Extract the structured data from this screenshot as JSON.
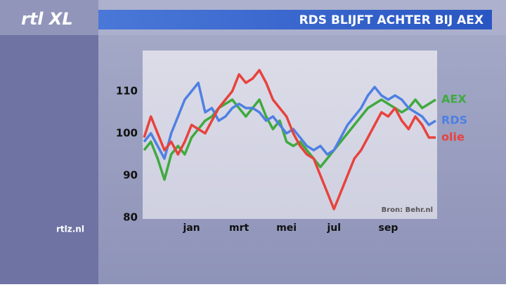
{
  "logo": "rtl XL",
  "website": "rtlz.nl",
  "chart_data": {
    "type": "line",
    "title": "RDS BLIJFT ACHTER BIJ AEX",
    "source": "Bron: Behr.nl",
    "categories": [
      null,
      null,
      null,
      null,
      null,
      null,
      null,
      "jan",
      null,
      null,
      null,
      null,
      null,
      null,
      "mrt",
      null,
      null,
      null,
      null,
      null,
      null,
      "mei",
      null,
      null,
      null,
      null,
      null,
      null,
      "jul",
      null,
      null,
      null,
      null,
      null,
      null,
      null,
      "sep",
      null,
      null,
      null,
      null,
      null,
      null,
      null
    ],
    "series": [
      {
        "name": "AEX",
        "color": "#3faa3f",
        "values": [
          96,
          98,
          94,
          89,
          95,
          97,
          95,
          99,
          101,
          103,
          104,
          106,
          107,
          108,
          106,
          104,
          106,
          108,
          104,
          101,
          103,
          98,
          97,
          98,
          96,
          94,
          92,
          94,
          96,
          98,
          100,
          102,
          104,
          106,
          107,
          108,
          107,
          106,
          105,
          106,
          108,
          106,
          107,
          108
        ]
      },
      {
        "name": "RDS",
        "color": "#4f80e2",
        "values": [
          98,
          100,
          97,
          94,
          100,
          104,
          108,
          110,
          112,
          105,
          106,
          103,
          104,
          106,
          107,
          106,
          106,
          105,
          103,
          104,
          102,
          100,
          101,
          99,
          97,
          96,
          97,
          95,
          96,
          99,
          102,
          104,
          106,
          109,
          111,
          109,
          108,
          109,
          108,
          106,
          105,
          104,
          102,
          103
        ]
      },
      {
        "name": "olie",
        "color": "#e8423d",
        "values": [
          99,
          104,
          100,
          96,
          98,
          95,
          98,
          102,
          101,
          100,
          103,
          106,
          108,
          110,
          114,
          112,
          113,
          115,
          112,
          108,
          106,
          104,
          100,
          97,
          95,
          94,
          90,
          86,
          82,
          86,
          90,
          94,
          96,
          99,
          102,
          105,
          104,
          106,
          103,
          101,
          104,
          102,
          99,
          99
        ]
      }
    ],
    "ylim": [
      80,
      120
    ],
    "yticks": [
      80,
      90,
      100,
      110
    ]
  }
}
